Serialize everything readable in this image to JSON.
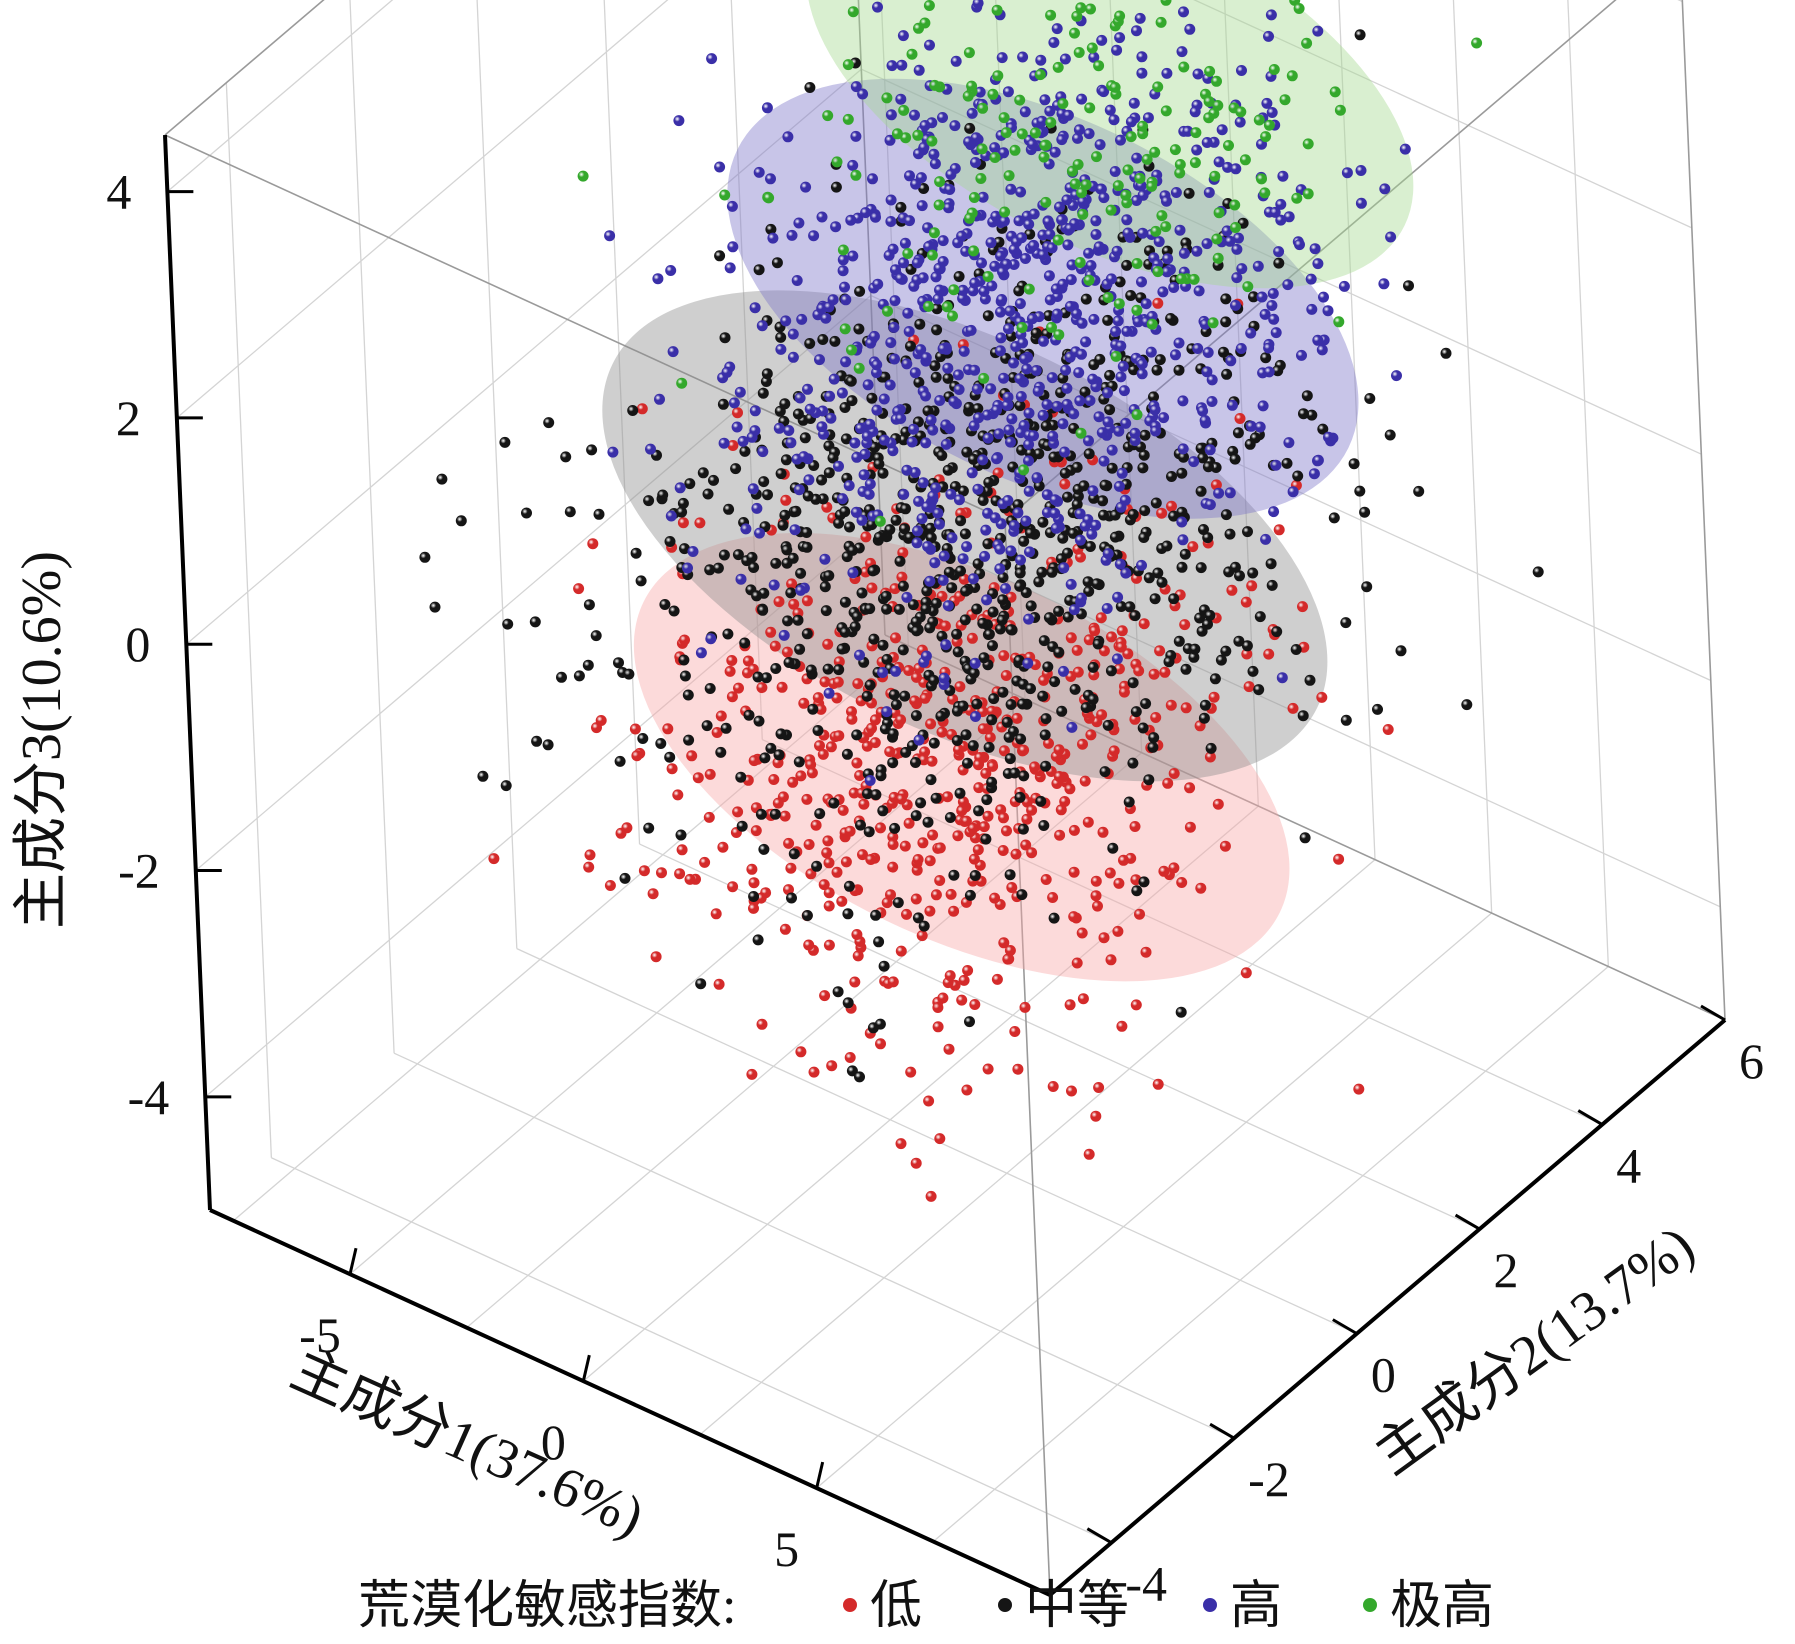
{
  "chart_data": {
    "type": "scatter",
    "subtype": "3d-scatter-with-confidence-ellipsoids",
    "xlabel": "主成分1(37.6%)",
    "ylabel": "主成分2(13.7%)",
    "zlabel": "主成分3(10.6%)",
    "xlim": [
      -8,
      10
    ],
    "ylim": [
      -5,
      6
    ],
    "zlim": [
      -5,
      4.5
    ],
    "xticks": [
      -5,
      0,
      5
    ],
    "yticks": [
      -4,
      -2,
      0,
      2,
      4,
      6
    ],
    "zticks": [
      -4,
      -2,
      0,
      2,
      4
    ],
    "xtick_labels": [
      "-5",
      "0",
      "5"
    ],
    "ytick_labels": [
      "-4",
      "-2",
      "0",
      "2",
      "4",
      "6"
    ],
    "ztick_labels": [
      "-4",
      "-2",
      "0",
      "2",
      "4"
    ],
    "grid": true,
    "legend": {
      "title": "荒漠化敏感指数:",
      "placement": "bottom"
    },
    "series": [
      {
        "name": "低",
        "color": "#d42a2a",
        "ellipse_color": "#f7a8a8",
        "approx_points": 600,
        "centroid": [
          1.2,
          0.5,
          -1.8
        ],
        "spread": [
          2.4,
          1.9,
          0.9
        ]
      },
      {
        "name": "中等",
        "color": "#151515",
        "ellipse_color": "#8c8c8c",
        "approx_points": 900,
        "centroid": [
          0.5,
          1.2,
          -0.3
        ],
        "spread": [
          2.6,
          2.2,
          1.0
        ]
      },
      {
        "name": "高",
        "color": "#3a2fa8",
        "ellipse_color": "#7d74c8",
        "approx_points": 900,
        "centroid": [
          0.2,
          2.8,
          1.0
        ],
        "spread": [
          2.2,
          2.0,
          0.9
        ]
      },
      {
        "name": "极高",
        "color": "#34a82c",
        "ellipse_color": "#a4d88e",
        "approx_points": 250,
        "centroid": [
          -0.5,
          4.5,
          2.0
        ],
        "spread": [
          2.2,
          1.8,
          0.8
        ]
      }
    ]
  }
}
